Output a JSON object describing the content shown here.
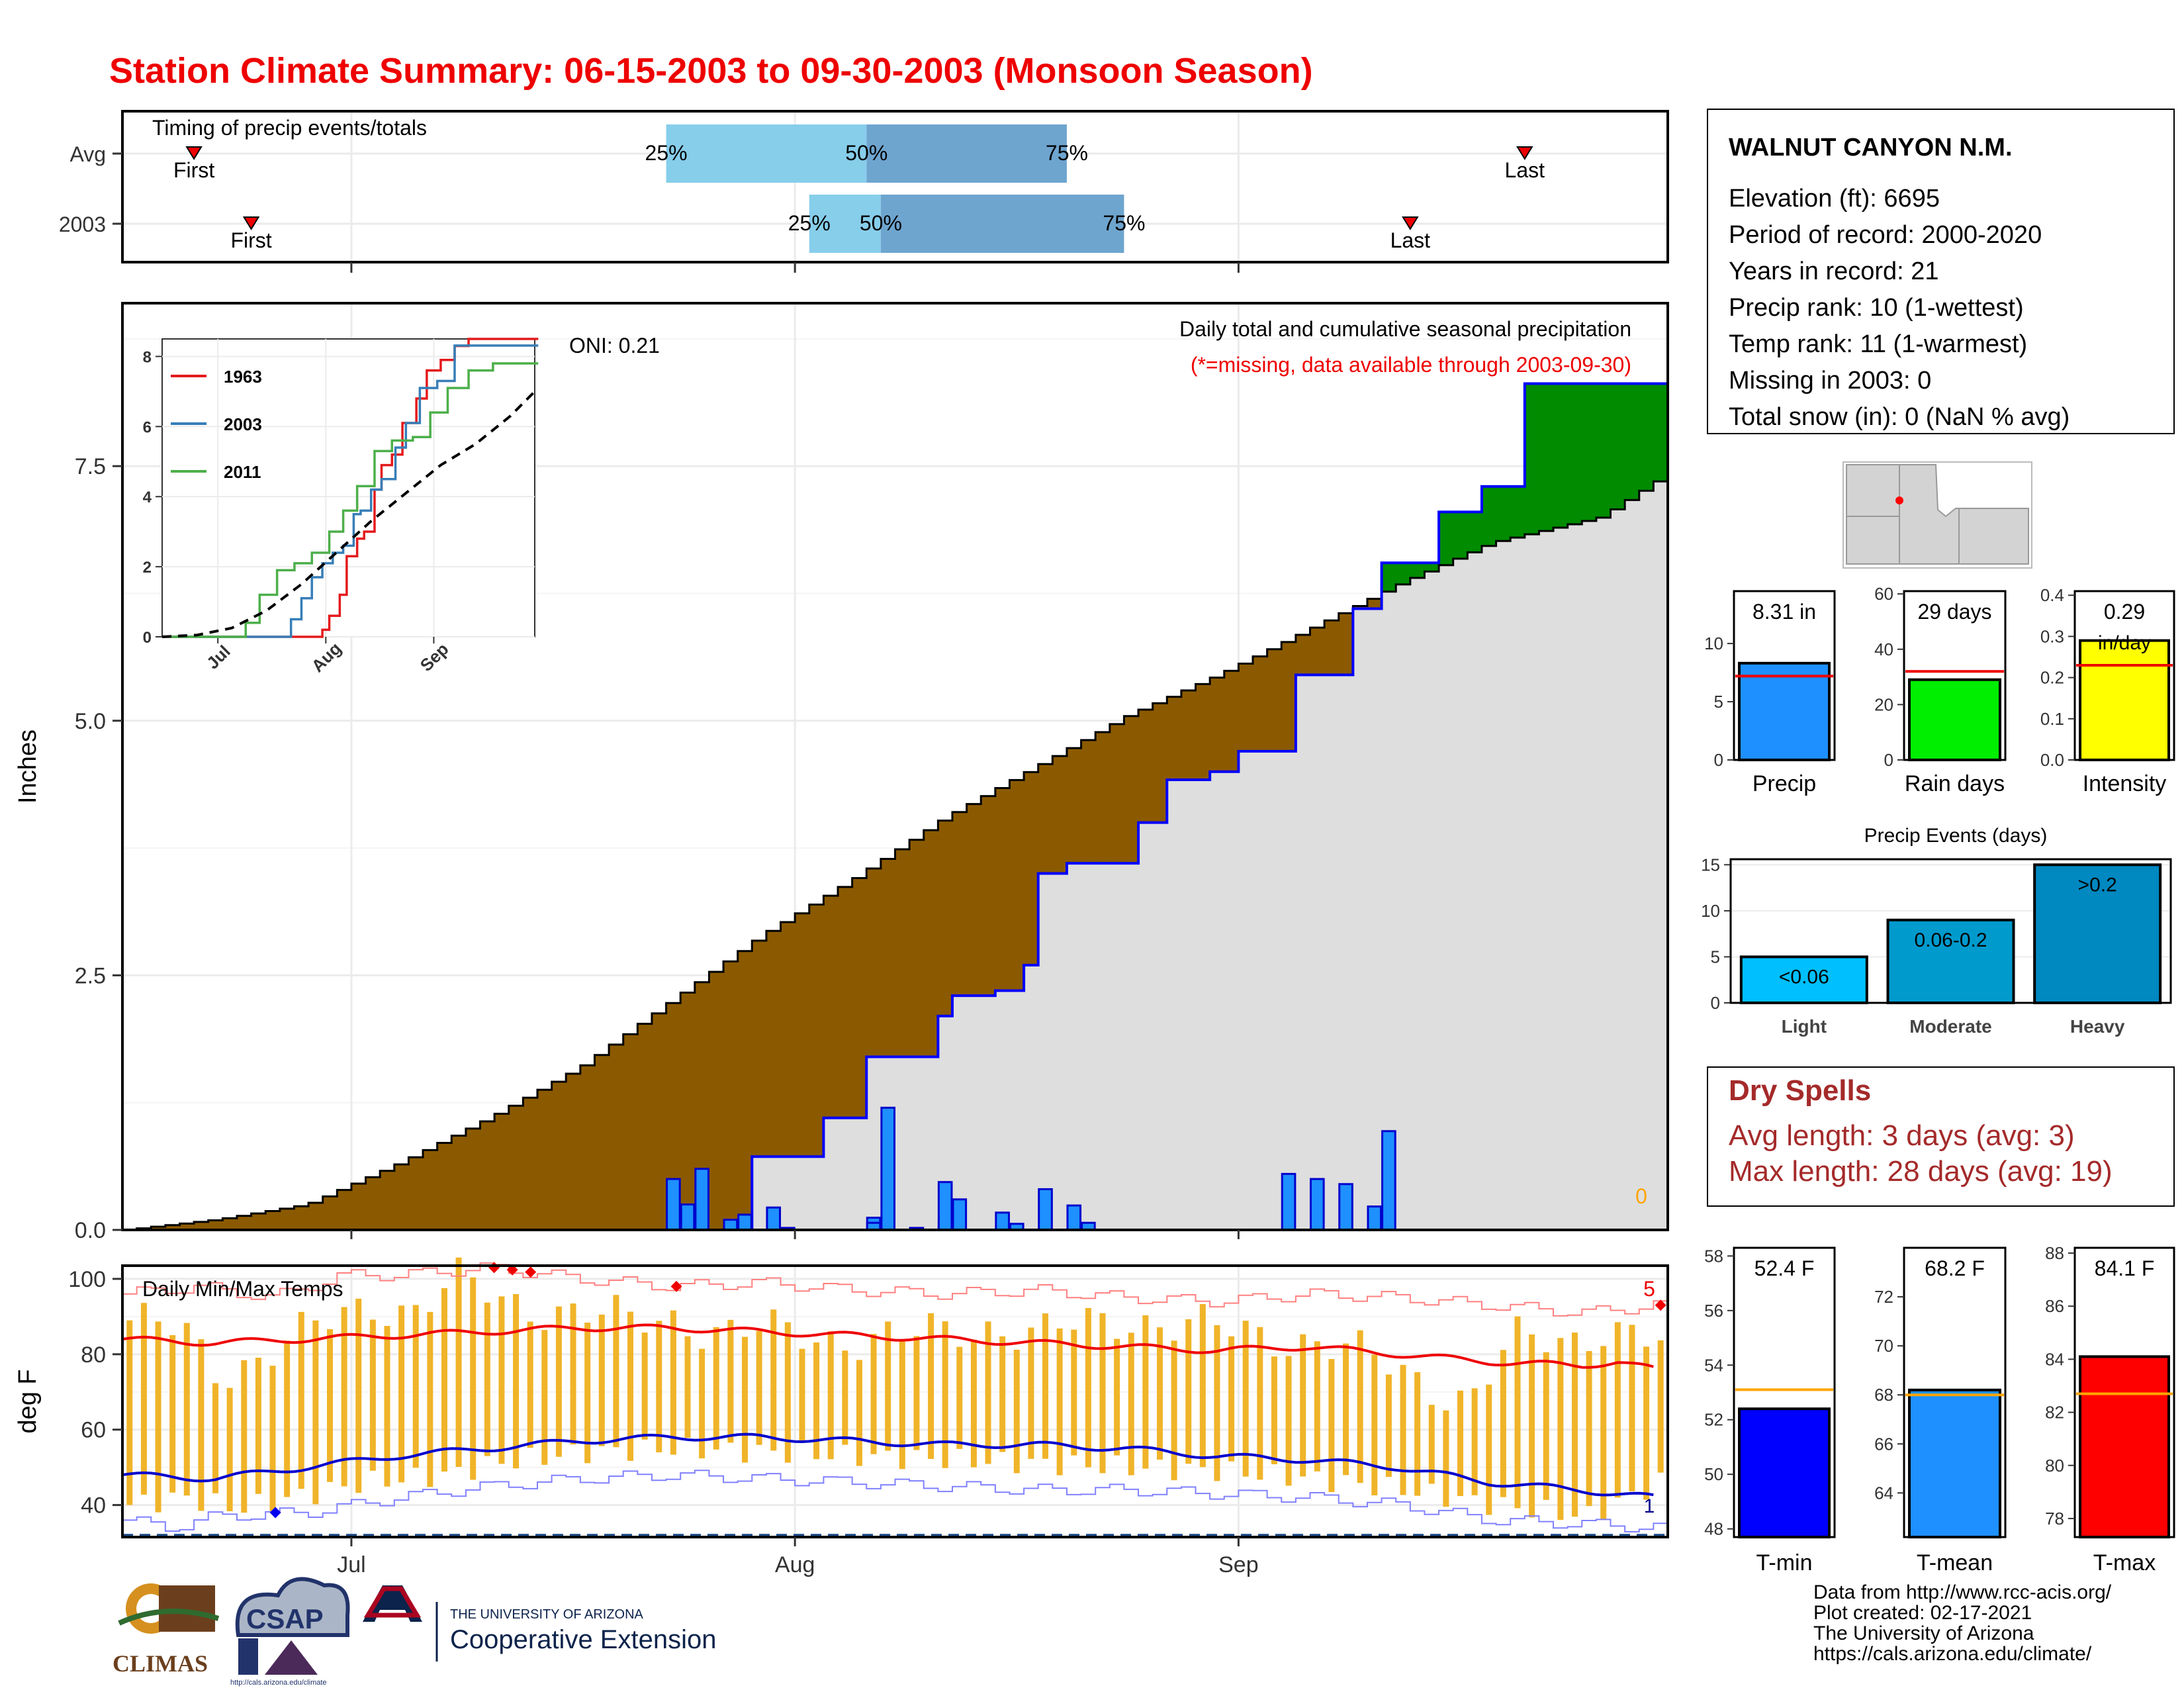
{
  "title": "Station Climate Summary: 06-15-2003 to 09-30-2003 (Monsoon Season)",
  "timing": {
    "label": "Timing of precip events/totals",
    "rows": [
      {
        "name": "Avg",
        "first": "2003-06-20",
        "q25": "2003-07-23",
        "q50": "2003-08-06",
        "q75": "2003-08-20",
        "last": "2003-09-21"
      },
      {
        "name": "2003",
        "first": "2003-06-24",
        "q25": "2003-08-02",
        "q50": "2003-08-07",
        "q75": "2003-08-24",
        "last": "2003-09-13"
      }
    ],
    "first_label": "First",
    "last_label": "Last",
    "q_labels": [
      "25%",
      "50%",
      "75%"
    ]
  },
  "station": {
    "name": "WALNUT CANYON N.M.",
    "lines": [
      "Elevation (ft): 6695",
      "Period of record: 2000-2020",
      "Years in record: 21",
      "Precip rank: 10 (1-wettest)",
      "Temp rank: 11 (1-warmest)",
      "Missing in 2003: 0",
      "Total snow (in): 0 (NaN % avg)"
    ]
  },
  "precip_panel": {
    "ylabel": "Inches",
    "oni": "ONI: 0.21",
    "subtitle": "Daily total and cumulative seasonal precipitation",
    "note": "(*=missing, data available through 2003-09-30)",
    "missing_count": "0",
    "x_ticks": [
      "Jul",
      "Aug",
      "Sep"
    ],
    "y_ticks": [
      "0.0",
      "2.5",
      "5.0",
      "7.5"
    ]
  },
  "inset": {
    "legend": [
      "1963",
      "2003",
      "2011"
    ],
    "x_ticks": [
      "Jul",
      "Aug",
      "Sep"
    ],
    "y_ticks": [
      "0",
      "2",
      "4",
      "6",
      "8"
    ]
  },
  "summary_bars": [
    {
      "label": "Precip",
      "value_text": "8.31 in",
      "value": 8.31,
      "avg": 7.2,
      "ylim": [
        0,
        14.5
      ],
      "ticks": [
        "0",
        "5",
        "10"
      ],
      "color": "#1e90ff"
    },
    {
      "label": "Rain days",
      "value_text": "29 days",
      "value": 29,
      "avg": 32,
      "ylim": [
        0,
        61
      ],
      "ticks": [
        "0",
        "20",
        "40",
        "60"
      ],
      "color": "#00ee00"
    },
    {
      "label": "Intensity",
      "value_text": "0.29 in/day",
      "value": 0.29,
      "avg": 0.23,
      "ylim": [
        0,
        0.41
      ],
      "ticks": [
        "0.0",
        "0.1",
        "0.2",
        "0.3",
        "0.4"
      ],
      "color": "#ffff00"
    }
  ],
  "events": {
    "title": "Precip Events (days)",
    "categories": [
      "Light",
      "Moderate",
      "Heavy"
    ],
    "labels": [
      "<0.06",
      "0.06-0.2",
      ">0.2"
    ],
    "values": [
      5,
      9,
      15
    ],
    "ticks": [
      "0",
      "5",
      "10",
      "15"
    ],
    "colors": [
      "#00bfff",
      "#009acd",
      "#0088c0"
    ]
  },
  "dry_spells": {
    "title": "Dry Spells",
    "avg_line": "Avg length: 3 days (avg: 3)",
    "max_line": "Max length: 28 days (avg: 19)"
  },
  "temp_panel": {
    "ylabel": "deg F",
    "label": "Daily Min/Max Temps",
    "record_high_count": "5",
    "record_low_count": "1",
    "y_ticks": [
      "40",
      "60",
      "80",
      "100"
    ]
  },
  "temp_bars": [
    {
      "label": "T-min",
      "value_text": "52.4 F",
      "value": 52.4,
      "avg": 53.1,
      "ylim": [
        47.7,
        58.3
      ],
      "ticks": [
        "48",
        "50",
        "52",
        "54",
        "56",
        "58"
      ],
      "color": "#0000ff"
    },
    {
      "label": "T-mean",
      "value_text": "68.2 F",
      "value": 68.2,
      "avg": 68.0,
      "ylim": [
        62.2,
        74.0
      ],
      "ticks": [
        "64",
        "66",
        "68",
        "70",
        "72"
      ],
      "color": "#1e90ff"
    },
    {
      "label": "T-max",
      "value_text": "84.1 F",
      "value": 84.1,
      "avg": 82.7,
      "ylim": [
        77.3,
        88.2
      ],
      "ticks": [
        "78",
        "80",
        "82",
        "84",
        "86",
        "88"
      ],
      "color": "#ff0000"
    }
  ],
  "logos": {
    "climas": "CLIMAS",
    "csap": "CSAP",
    "csap_url": "http://cals.arizona.edu/climate",
    "ua_line1": "THE UNIVERSITY OF ARIZONA",
    "ua_line2": "Cooperative Extension"
  },
  "credits": [
    "Data from http://www.rcc-acis.org/",
    "Plot created: 02-17-2021",
    "The University of Arizona",
    "https://cals.arizona.edu/climate/"
  ],
  "chart_data": [
    {
      "type": "area",
      "name": "Daily total and cumulative seasonal precipitation",
      "x_start": "2003-06-15",
      "x_end": "2003-09-30",
      "ylabel": "Inches",
      "ylim": [
        0,
        9.1
      ],
      "cumulative_avg_knots": [
        [
          0,
          0
        ],
        [
          10,
          0.1
        ],
        [
          20,
          0.25
        ],
        [
          30,
          0.65
        ],
        [
          40,
          1.1
        ],
        [
          50,
          1.6
        ],
        [
          60,
          2.25
        ],
        [
          70,
          2.9
        ],
        [
          80,
          3.45
        ],
        [
          90,
          4.05
        ],
        [
          100,
          4.55
        ],
        [
          110,
          5.05
        ],
        [
          120,
          5.45
        ],
        [
          130,
          5.9
        ],
        [
          140,
          6.35
        ],
        [
          150,
          6.75
        ],
        [
          162,
          7.0
        ],
        [
          168,
          7.35
        ]
      ],
      "cumulative_2003_knots": [
        [
          0,
          0
        ],
        [
          60,
          0
        ],
        [
          69,
          0.72
        ],
        [
          76,
          1.1
        ],
        [
          81,
          1.7
        ],
        [
          88,
          2.1
        ],
        [
          91,
          2.3
        ],
        [
          95,
          2.35
        ],
        [
          98,
          2.6
        ],
        [
          100,
          3.5
        ],
        [
          103,
          3.6
        ],
        [
          110,
          4.0
        ],
        [
          114,
          4.42
        ],
        [
          118,
          4.5
        ],
        [
          122,
          4.7
        ],
        [
          128,
          5.45
        ],
        [
          134,
          6.1
        ],
        [
          138,
          6.55
        ],
        [
          144,
          7.05
        ],
        [
          148,
          7.3
        ],
        [
          153,
          8.31
        ],
        [
          168,
          8.31
        ]
      ],
      "daily_2003": [
        [
          59,
          0.1
        ],
        [
          60,
          0.5
        ],
        [
          61,
          0.25
        ],
        [
          63,
          0.6
        ],
        [
          66,
          0.1
        ],
        [
          67,
          0.12
        ],
        [
          68,
          0.15
        ],
        [
          71,
          0.22
        ],
        [
          73,
          0.02
        ],
        [
          81,
          0.12
        ],
        [
          82,
          0.07
        ],
        [
          83,
          1.2
        ],
        [
          86,
          0.02
        ],
        [
          89,
          0.08
        ],
        [
          90,
          0.47
        ],
        [
          91,
          0.3
        ],
        [
          95,
          0.17
        ],
        [
          98,
          0.06
        ],
        [
          101,
          0.4
        ],
        [
          104,
          0.24
        ],
        [
          105,
          0.07
        ],
        [
          127,
          0.55
        ],
        [
          130,
          0.5
        ],
        [
          134,
          0.45
        ],
        [
          137,
          0.23
        ],
        [
          138,
          0.97
        ]
      ]
    },
    {
      "type": "line",
      "name": "Cumulative precipitation inset",
      "xlim": [
        0,
        107
      ],
      "ylim": [
        0,
        8.5
      ],
      "series": [
        {
          "name": "1963",
          "color": "#e41a1c",
          "knots": [
            [
              0,
              0
            ],
            [
              44,
              0
            ],
            [
              46,
              0.2
            ],
            [
              48,
              0.6
            ],
            [
              51,
              1.2
            ],
            [
              53,
              2.3
            ],
            [
              56,
              2.8
            ],
            [
              58,
              3.0
            ],
            [
              61,
              4.2
            ],
            [
              63,
              4.9
            ],
            [
              66,
              5.2
            ],
            [
              69,
              6.1
            ],
            [
              73,
              6.8
            ],
            [
              76,
              7.6
            ],
            [
              80,
              7.9
            ],
            [
              84,
              8.3
            ],
            [
              88,
              8.5
            ],
            [
              107,
              8.5
            ]
          ]
        },
        {
          "name": "2003",
          "color": "#377eb8",
          "knots": [
            [
              0,
              0
            ],
            [
              35,
              0
            ],
            [
              37,
              0.5
            ],
            [
              40,
              1.1
            ],
            [
              43,
              1.7
            ],
            [
              46,
              2.1
            ],
            [
              49,
              2.4
            ],
            [
              52,
              2.6
            ],
            [
              55,
              3.5
            ],
            [
              57,
              3.6
            ],
            [
              60,
              4.2
            ],
            [
              63,
              4.5
            ],
            [
              67,
              5.4
            ],
            [
              70,
              6.1
            ],
            [
              74,
              7.1
            ],
            [
              79,
              7.3
            ],
            [
              84,
              8.31
            ],
            [
              107,
              8.31
            ]
          ]
        },
        {
          "name": "2011",
          "color": "#4daf4a",
          "knots": [
            [
              0,
              0
            ],
            [
              20,
              0
            ],
            [
              24,
              0.4
            ],
            [
              28,
              1.2
            ],
            [
              33,
              1.9
            ],
            [
              38,
              2.1
            ],
            [
              43,
              2.4
            ],
            [
              48,
              3.0
            ],
            [
              52,
              3.6
            ],
            [
              56,
              4.3
            ],
            [
              61,
              5.3
            ],
            [
              66,
              5.6
            ],
            [
              72,
              5.7
            ],
            [
              77,
              6.4
            ],
            [
              82,
              7.1
            ],
            [
              88,
              7.6
            ],
            [
              95,
              7.8
            ],
            [
              107,
              7.8
            ]
          ]
        },
        {
          "name": "avg",
          "color": "#000000",
          "dash": true,
          "knots": [
            [
              0,
              0
            ],
            [
              10,
              0.05
            ],
            [
              20,
              0.25
            ],
            [
              30,
              0.75
            ],
            [
              40,
              1.5
            ],
            [
              50,
              2.4
            ],
            [
              60,
              3.3
            ],
            [
              70,
              4.1
            ],
            [
              80,
              4.9
            ],
            [
              90,
              5.5
            ],
            [
              100,
              6.3
            ],
            [
              107,
              7.0
            ]
          ]
        }
      ]
    },
    {
      "type": "bar",
      "name": "Daily Min/Max Temps",
      "ylabel": "deg F",
      "ylim": [
        31.5,
        103.5
      ],
      "record_high_knots": [
        [
          0,
          96
        ],
        [
          8,
          98
        ],
        [
          16,
          95
        ],
        [
          24,
          101
        ],
        [
          30,
          101
        ],
        [
          40,
          103
        ],
        [
          50,
          100
        ],
        [
          60,
          98
        ],
        [
          70,
          99
        ],
        [
          80,
          97
        ],
        [
          90,
          96
        ],
        [
          100,
          97
        ],
        [
          110,
          95
        ],
        [
          120,
          94
        ],
        [
          130,
          96
        ],
        [
          140,
          95
        ],
        [
          150,
          93
        ],
        [
          160,
          91
        ],
        [
          168,
          93
        ]
      ],
      "avg_high_knots": [
        [
          0,
          84
        ],
        [
          10,
          83
        ],
        [
          20,
          84
        ],
        [
          30,
          85
        ],
        [
          40,
          86
        ],
        [
          50,
          87
        ],
        [
          60,
          87
        ],
        [
          70,
          86
        ],
        [
          80,
          85
        ],
        [
          90,
          84
        ],
        [
          100,
          83
        ],
        [
          110,
          82
        ],
        [
          120,
          81
        ],
        [
          130,
          82
        ],
        [
          140,
          80
        ],
        [
          150,
          78
        ],
        [
          160,
          77
        ],
        [
          164,
          78
        ],
        [
          168,
          76
        ]
      ],
      "avg_low_knots": [
        [
          0,
          48
        ],
        [
          10,
          47
        ],
        [
          20,
          50
        ],
        [
          30,
          53
        ],
        [
          40,
          55
        ],
        [
          50,
          57
        ],
        [
          60,
          58
        ],
        [
          70,
          58
        ],
        [
          80,
          57
        ],
        [
          90,
          56
        ],
        [
          100,
          56
        ],
        [
          110,
          55
        ],
        [
          120,
          53
        ],
        [
          130,
          52
        ],
        [
          140,
          50
        ],
        [
          150,
          46
        ],
        [
          160,
          44
        ],
        [
          168,
          42
        ]
      ],
      "record_low_knots": [
        [
          0,
          36
        ],
        [
          5,
          34
        ],
        [
          10,
          37
        ],
        [
          20,
          38
        ],
        [
          30,
          42
        ],
        [
          40,
          45
        ],
        [
          50,
          47
        ],
        [
          60,
          48
        ],
        [
          70,
          47
        ],
        [
          80,
          46
        ],
        [
          90,
          45
        ],
        [
          100,
          44
        ],
        [
          110,
          44
        ],
        [
          120,
          43
        ],
        [
          130,
          42
        ],
        [
          140,
          40
        ],
        [
          150,
          36
        ],
        [
          160,
          35
        ],
        [
          168,
          34
        ]
      ],
      "freeze_line": 32,
      "daily_high_knots": [
        [
          0,
          89
        ],
        [
          6,
          85
        ],
        [
          10,
          75
        ],
        [
          16,
          82
        ],
        [
          22,
          88
        ],
        [
          27,
          94
        ],
        [
          31,
          92
        ],
        [
          36,
          99
        ],
        [
          41,
          94
        ],
        [
          48,
          92
        ],
        [
          55,
          88
        ],
        [
          60,
          90
        ],
        [
          65,
          86
        ],
        [
          75,
          85
        ],
        [
          85,
          84
        ],
        [
          95,
          88
        ],
        [
          100,
          85
        ],
        [
          110,
          90
        ],
        [
          120,
          86
        ],
        [
          130,
          84
        ],
        [
          140,
          75
        ],
        [
          147,
          68
        ],
        [
          152,
          83
        ],
        [
          158,
          84
        ],
        [
          162,
          88
        ],
        [
          168,
          82
        ]
      ],
      "daily_low_knots": [
        [
          0,
          40
        ],
        [
          6,
          42
        ],
        [
          12,
          39
        ],
        [
          18,
          42
        ],
        [
          26,
          46
        ],
        [
          35,
          48
        ],
        [
          40,
          51
        ],
        [
          50,
          54
        ],
        [
          60,
          55
        ],
        [
          70,
          54
        ],
        [
          80,
          53
        ],
        [
          90,
          52
        ],
        [
          100,
          51
        ],
        [
          110,
          50
        ],
        [
          120,
          49
        ],
        [
          130,
          47
        ],
        [
          140,
          44
        ],
        [
          150,
          40
        ],
        [
          160,
          37
        ],
        [
          168,
          46
        ]
      ],
      "record_high_days": [
        40,
        42,
        44,
        60,
        168
      ],
      "record_low_days": [
        16
      ]
    },
    {
      "type": "bar",
      "name": "Summary bars",
      "categories": [
        "Precip",
        "Rain days",
        "Intensity",
        "T-min",
        "T-mean",
        "T-max"
      ],
      "values": [
        8.31,
        29,
        0.29,
        52.4,
        68.2,
        84.1
      ]
    },
    {
      "type": "bar",
      "name": "Precip Events (days)",
      "categories": [
        "Light",
        "Moderate",
        "Heavy"
      ],
      "values": [
        5,
        9,
        15
      ]
    }
  ]
}
